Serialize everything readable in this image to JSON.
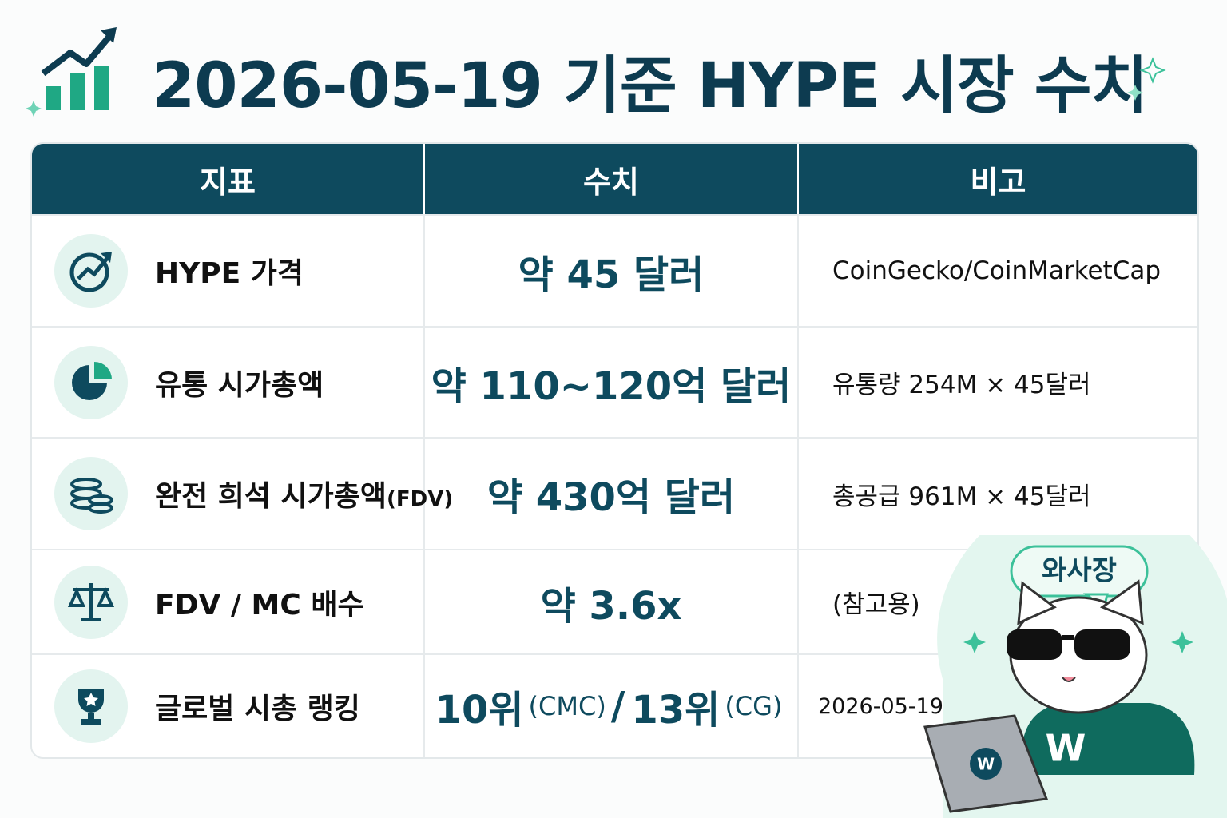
{
  "header": {
    "title": "2026-05-19 기준 HYPE 시장 수치"
  },
  "table": {
    "headers": [
      "지표",
      "수치",
      "비고"
    ],
    "rows": [
      {
        "label": "HYPE 가격",
        "value": "약 45 달러",
        "note": "CoinGecko/CoinMarketCap"
      },
      {
        "label": "유통 시가총액",
        "value": "약 110~120억 달러",
        "note": "유통량 254M × 45달러"
      },
      {
        "label": [
          "완전 희석 시가총액",
          "(FDV)"
        ],
        "value": "약 430억 달러",
        "note": "총공급 961M × 45달러"
      },
      {
        "label": "FDV / MC 배수",
        "value": "약 3.6x",
        "note": "(참고용)"
      },
      {
        "label": "글로벌 시총 랭킹",
        "value": [
          "10위",
          "(CMC)",
          "/",
          "13위",
          "(CG)"
        ],
        "note": "2026-05-19"
      }
    ]
  },
  "mascot": {
    "name": "와사장",
    "logo": "W"
  }
}
